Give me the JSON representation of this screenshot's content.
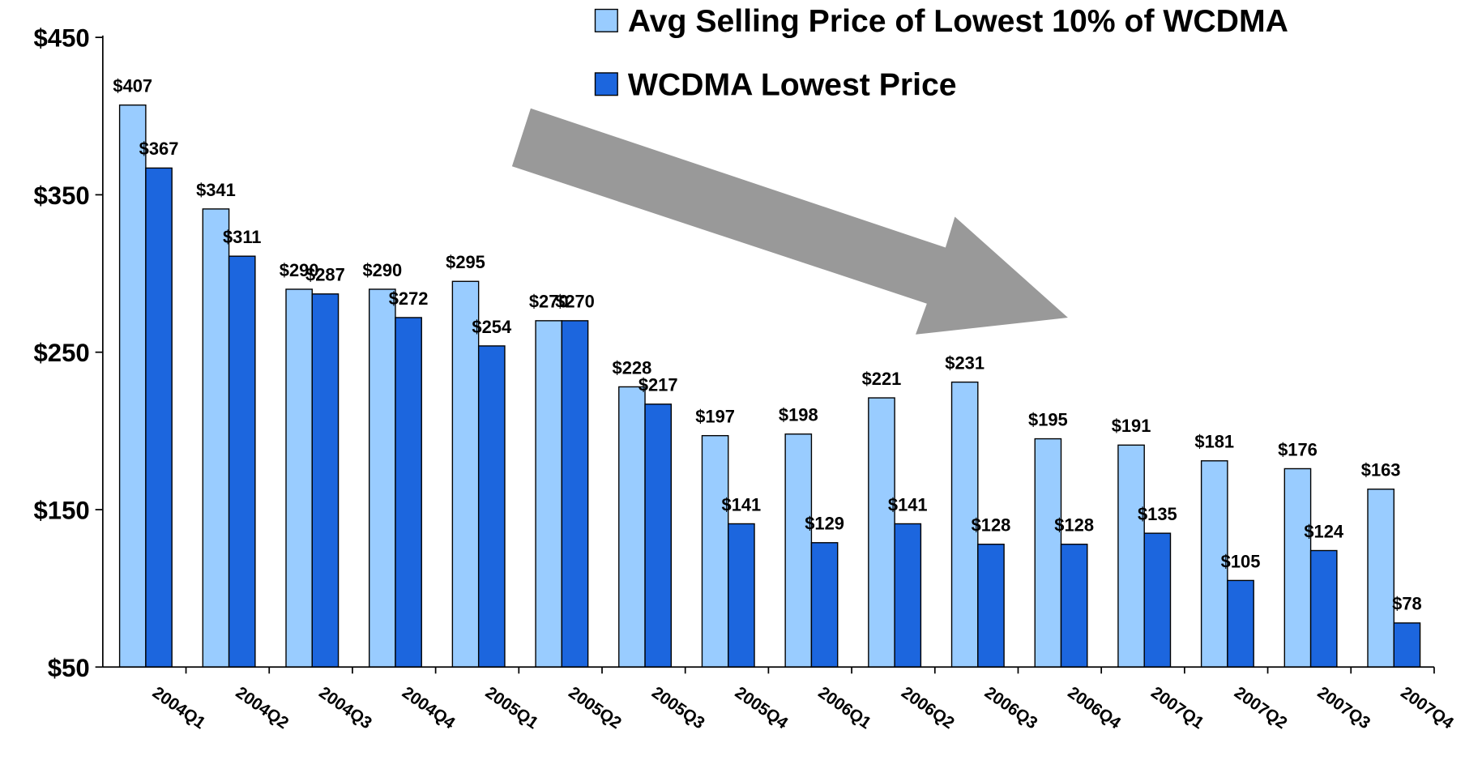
{
  "chart_data": {
    "type": "bar",
    "categories": [
      "2004Q1",
      "2004Q2",
      "2004Q3",
      "2004Q4",
      "2005Q1",
      "2005Q2",
      "2005Q3",
      "2005Q4",
      "2006Q1",
      "2006Q2",
      "2006Q3",
      "2006Q4",
      "2007Q1",
      "2007Q2",
      "2007Q3",
      "2007Q4"
    ],
    "series": [
      {
        "name": "Avg Selling Price of Lowest 10% of WCDMA",
        "color": "#99ccff",
        "values": [
          407,
          341,
          290,
          290,
          295,
          270,
          228,
          197,
          198,
          221,
          231,
          195,
          191,
          181,
          176,
          163
        ],
        "value_labels": [
          "$407",
          "$341",
          "$290",
          "$290",
          "$295",
          "$270",
          "$228",
          "$197",
          "$198",
          "$221",
          "$231",
          "$195",
          "$191",
          "$181",
          "$176",
          "$163"
        ]
      },
      {
        "name": "WCDMA Lowest Price",
        "color": "#1c66de",
        "values": [
          367,
          311,
          287,
          272,
          254,
          270,
          217,
          141,
          129,
          141,
          128,
          128,
          135,
          105,
          124,
          78
        ],
        "value_labels": [
          "$367",
          "$311",
          "$287",
          "$272",
          "$254",
          "$270",
          "$217",
          "$141",
          "$129",
          "$141",
          "$128",
          "$128",
          "$135",
          "$105",
          "$124",
          "$78"
        ]
      }
    ],
    "ylim": [
      50,
      450
    ],
    "yticks": [
      {
        "value": 50,
        "label": "$50"
      },
      {
        "value": 150,
        "label": "$150"
      },
      {
        "value": 250,
        "label": "$250"
      },
      {
        "value": 350,
        "label": "$350"
      },
      {
        "value": 450,
        "label": "$450"
      }
    ],
    "grid": false
  }
}
